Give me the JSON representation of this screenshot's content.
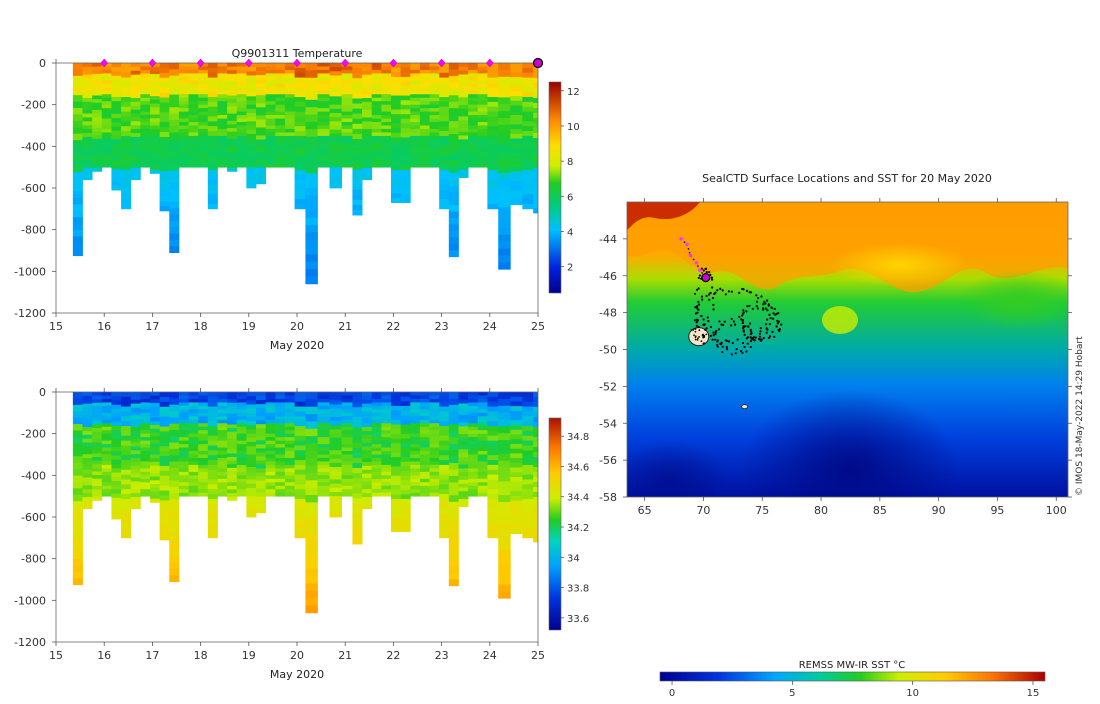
{
  "chart_data": [
    {
      "id": "temperature",
      "type": "heatmap",
      "title": "Q9901311  Temperature",
      "xlabel": "May 2020",
      "x_ticks": [
        "15",
        "16",
        "17",
        "18",
        "19",
        "20",
        "21",
        "22",
        "23",
        "24",
        "25"
      ],
      "xlim": [
        15,
        25
      ],
      "ylim": [
        -1200,
        0
      ],
      "y_ticks": [
        "0",
        "-200",
        "-400",
        "-600",
        "-800",
        "-1000",
        "-1200"
      ],
      "colorbar": {
        "ticks": [
          "2",
          "4",
          "6",
          "8",
          "10",
          "12"
        ],
        "range": [
          0.5,
          12.5
        ]
      },
      "dive_markers_days": [
        16,
        17,
        18,
        19,
        20,
        21,
        22,
        23,
        24
      ],
      "last_marker_day": 25,
      "profiles": [
        {
          "t": 15.45,
          "dmax": -925
        },
        {
          "t": 15.65,
          "dmax": -560
        },
        {
          "t": 15.85,
          "dmax": -520
        },
        {
          "t": 16.05,
          "dmax": -500
        },
        {
          "t": 16.25,
          "dmax": -610
        },
        {
          "t": 16.45,
          "dmax": -700
        },
        {
          "t": 16.65,
          "dmax": -560
        },
        {
          "t": 16.85,
          "dmax": -500
        },
        {
          "t": 17.05,
          "dmax": -530
        },
        {
          "t": 17.25,
          "dmax": -710
        },
        {
          "t": 17.45,
          "dmax": -910
        },
        {
          "t": 17.65,
          "dmax": -500
        },
        {
          "t": 17.85,
          "dmax": -500
        },
        {
          "t": 18.05,
          "dmax": -500
        },
        {
          "t": 18.25,
          "dmax": -700
        },
        {
          "t": 18.45,
          "dmax": -500
        },
        {
          "t": 18.65,
          "dmax": -520
        },
        {
          "t": 18.85,
          "dmax": -500
        },
        {
          "t": 19.05,
          "dmax": -600
        },
        {
          "t": 19.25,
          "dmax": -580
        },
        {
          "t": 19.45,
          "dmax": -500
        },
        {
          "t": 19.65,
          "dmax": -500
        },
        {
          "t": 19.85,
          "dmax": -500
        },
        {
          "t": 20.05,
          "dmax": -700
        },
        {
          "t": 20.3,
          "dmax": -1060
        },
        {
          "t": 20.55,
          "dmax": -500
        },
        {
          "t": 20.8,
          "dmax": -600
        },
        {
          "t": 21.05,
          "dmax": -500
        },
        {
          "t": 21.25,
          "dmax": -730
        },
        {
          "t": 21.45,
          "dmax": -560
        },
        {
          "t": 21.65,
          "dmax": -500
        },
        {
          "t": 21.85,
          "dmax": -500
        },
        {
          "t": 22.05,
          "dmax": -670
        },
        {
          "t": 22.25,
          "dmax": -670
        },
        {
          "t": 22.45,
          "dmax": -500
        },
        {
          "t": 22.65,
          "dmax": -500
        },
        {
          "t": 22.85,
          "dmax": -500
        },
        {
          "t": 23.05,
          "dmax": -700
        },
        {
          "t": 23.25,
          "dmax": -930
        },
        {
          "t": 23.45,
          "dmax": -550
        },
        {
          "t": 23.65,
          "dmax": -500
        },
        {
          "t": 23.85,
          "dmax": -500
        },
        {
          "t": 24.05,
          "dmax": -700
        },
        {
          "t": 24.3,
          "dmax": -990
        },
        {
          "t": 24.55,
          "dmax": -680
        },
        {
          "t": 24.8,
          "dmax": -700
        },
        {
          "t": 25.0,
          "dmax": -720
        }
      ]
    },
    {
      "id": "salinity",
      "type": "heatmap",
      "title": "",
      "xlabel": "May 2020",
      "x_ticks": [
        "15",
        "16",
        "17",
        "18",
        "19",
        "20",
        "21",
        "22",
        "23",
        "24",
        "25"
      ],
      "xlim": [
        15,
        25
      ],
      "ylim": [
        -1200,
        0
      ],
      "y_ticks": [
        "0",
        "-200",
        "-400",
        "-600",
        "-800",
        "-1000",
        "-1200"
      ],
      "colorbar": {
        "ticks": [
          "33.6",
          "33.8",
          "34",
          "34.2",
          "34.4",
          "34.6",
          "34.8"
        ],
        "range": [
          33.52,
          34.92
        ]
      }
    },
    {
      "id": "sst_map",
      "type": "heatmap",
      "title": "SealCTD Surface Locations and SST for 20 May 2020",
      "x_ticks": [
        "65",
        "70",
        "75",
        "80",
        "85",
        "90",
        "95",
        "100"
      ],
      "xlim": [
        63.5,
        101
      ],
      "y_ticks": [
        "-44",
        "-46",
        "-48",
        "-50",
        "-52",
        "-54",
        "-56",
        "-58"
      ],
      "ylim": [
        -58,
        -42
      ],
      "colorbar": {
        "label": "REMSS MW-IR SST °C",
        "ticks": [
          "0",
          "5",
          "10",
          "15"
        ],
        "range": [
          -0.5,
          15.5
        ]
      },
      "credit": "© IMOS 18-May-2022 14:29 Hobart",
      "track_recent": [
        [
          68.1,
          -44.0
        ],
        [
          68.6,
          -44.3
        ],
        [
          68.9,
          -44.9
        ],
        [
          69.4,
          -45.3
        ],
        [
          69.7,
          -45.7
        ],
        [
          70.2,
          -46.1
        ]
      ],
      "current_position": [
        70.2,
        -46.1
      ],
      "island": [
        69.6,
        -49.3
      ],
      "island2": [
        73.5,
        -53.1
      ]
    }
  ]
}
